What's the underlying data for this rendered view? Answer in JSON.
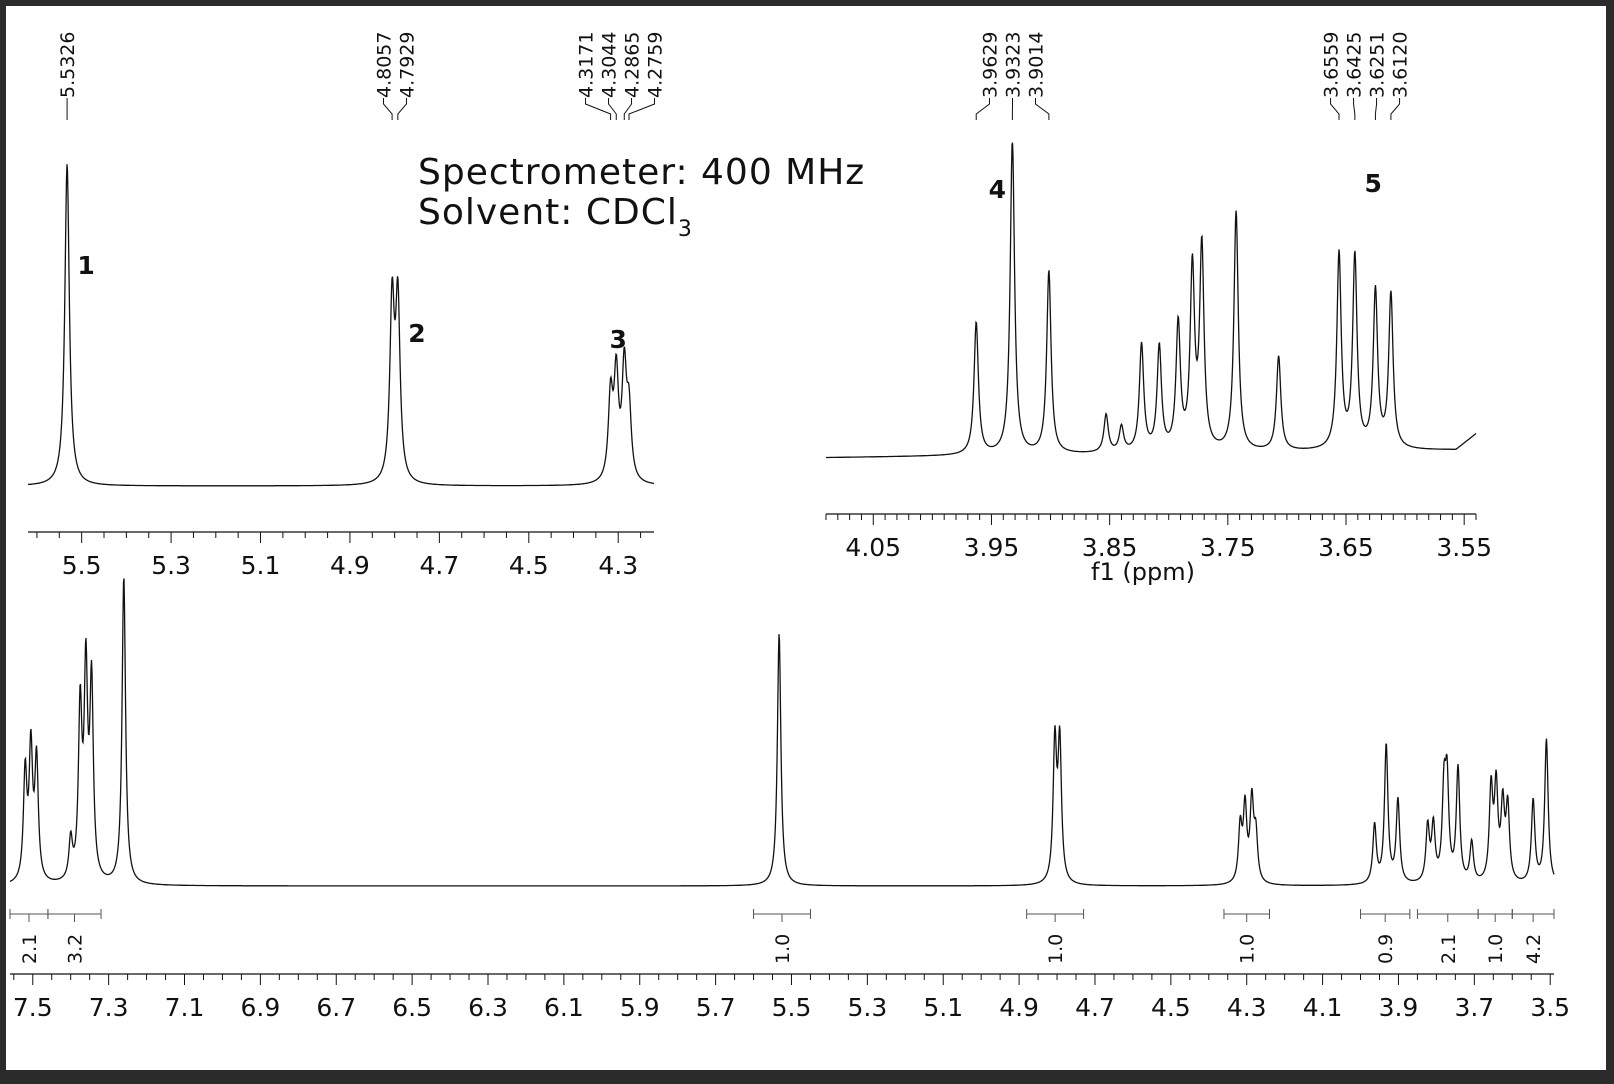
{
  "info": {
    "spectrometer": "Spectrometer: 400 MHz",
    "solvent_prefix": "Solvent: CDCl",
    "solvent_sub": "3"
  },
  "chart_data": [
    {
      "type": "line",
      "panel": "inset-left",
      "xlabel": "",
      "xlim": [
        5.62,
        4.22
      ],
      "ticks": [
        5.5,
        5.3,
        5.1,
        4.9,
        4.7,
        4.5,
        4.3
      ],
      "tick_labels": [
        "5.5",
        "5.3",
        "5.1",
        "4.9",
        "4.7",
        "4.5",
        "4.3"
      ],
      "peak_labels": [
        "5.5326",
        "4.8057",
        "4.7929",
        "4.3171",
        "4.3044",
        "4.2865",
        "4.2759"
      ],
      "peaks": [
        {
          "shift": 5.5326,
          "height": 1.0
        },
        {
          "shift": 4.8057,
          "height": 0.55
        },
        {
          "shift": 4.7929,
          "height": 0.55
        },
        {
          "shift": 4.3171,
          "height": 0.26
        },
        {
          "shift": 4.3044,
          "height": 0.32
        },
        {
          "shift": 4.2865,
          "height": 0.34
        },
        {
          "shift": 4.2759,
          "height": 0.21
        }
      ],
      "annotations": [
        {
          "text": "1",
          "shift": 5.49
        },
        {
          "text": "2",
          "shift": 4.75
        },
        {
          "text": "3",
          "shift": 4.3
        }
      ]
    },
    {
      "type": "line",
      "panel": "inset-right",
      "xlabel": "f1 (ppm)",
      "xlim": [
        4.09,
        3.54
      ],
      "ticks": [
        4.05,
        3.95,
        3.85,
        3.75,
        3.65,
        3.55
      ],
      "tick_labels": [
        "4.05",
        "3.95",
        "3.85",
        "3.75",
        "3.65",
        "3.55"
      ],
      "peak_labels": [
        "3.9629",
        "3.9323",
        "3.9014",
        "3.6559",
        "3.6425",
        "3.6251",
        "3.6120"
      ],
      "peaks": [
        {
          "shift": 3.9629,
          "height": 0.42
        },
        {
          "shift": 3.9323,
          "height": 1.0
        },
        {
          "shift": 3.9014,
          "height": 0.58
        },
        {
          "shift": 3.853,
          "height": 0.12
        },
        {
          "shift": 3.84,
          "height": 0.08
        },
        {
          "shift": 3.823,
          "height": 0.34
        },
        {
          "shift": 3.808,
          "height": 0.33
        },
        {
          "shift": 3.792,
          "height": 0.4
        },
        {
          "shift": 3.78,
          "height": 0.57
        },
        {
          "shift": 3.772,
          "height": 0.64
        },
        {
          "shift": 3.743,
          "height": 0.76
        },
        {
          "shift": 3.707,
          "height": 0.3
        },
        {
          "shift": 3.6559,
          "height": 0.62
        },
        {
          "shift": 3.6425,
          "height": 0.61
        },
        {
          "shift": 3.6251,
          "height": 0.5
        },
        {
          "shift": 3.612,
          "height": 0.49
        }
      ],
      "annotations": [
        {
          "text": "4",
          "shift": 3.945
        },
        {
          "text": "5",
          "shift": 3.627
        }
      ]
    },
    {
      "type": "line",
      "panel": "main",
      "xlabel": "",
      "xlim": [
        7.56,
        3.49
      ],
      "ticks": [
        7.5,
        7.3,
        7.1,
        6.9,
        6.7,
        6.5,
        6.3,
        6.1,
        5.9,
        5.7,
        5.5,
        5.3,
        5.1,
        4.9,
        4.7,
        4.5,
        4.3,
        4.1,
        3.9,
        3.7,
        3.5
      ],
      "tick_labels": [
        "7.5",
        "7.3",
        "7.1",
        "6.9",
        "6.7",
        "6.5",
        "6.3",
        "6.1",
        "5.9",
        "5.7",
        "5.5",
        "5.3",
        "5.1",
        "4.9",
        "4.7",
        "4.5",
        "4.3",
        "4.1",
        "3.9",
        "3.7",
        "3.5"
      ],
      "peaks": [
        {
          "shift": 7.52,
          "height": 0.35
        },
        {
          "shift": 7.505,
          "height": 0.42
        },
        {
          "shift": 7.49,
          "height": 0.39
        },
        {
          "shift": 7.4,
          "height": 0.13
        },
        {
          "shift": 7.375,
          "height": 0.55
        },
        {
          "shift": 7.36,
          "height": 0.66
        },
        {
          "shift": 7.345,
          "height": 0.63
        },
        {
          "shift": 7.26,
          "height": 1.0
        },
        {
          "shift": 5.5326,
          "height": 0.82
        },
        {
          "shift": 4.8057,
          "height": 0.45
        },
        {
          "shift": 4.7929,
          "height": 0.45
        },
        {
          "shift": 4.3171,
          "height": 0.18
        },
        {
          "shift": 4.3044,
          "height": 0.24
        },
        {
          "shift": 4.2865,
          "height": 0.26
        },
        {
          "shift": 4.2759,
          "height": 0.15
        },
        {
          "shift": 3.9629,
          "height": 0.19
        },
        {
          "shift": 3.9323,
          "height": 0.45
        },
        {
          "shift": 3.9014,
          "height": 0.27
        },
        {
          "shift": 3.823,
          "height": 0.18
        },
        {
          "shift": 3.808,
          "height": 0.18
        },
        {
          "shift": 3.78,
          "height": 0.28
        },
        {
          "shift": 3.772,
          "height": 0.31
        },
        {
          "shift": 3.743,
          "height": 0.37
        },
        {
          "shift": 3.707,
          "height": 0.13
        },
        {
          "shift": 3.6559,
          "height": 0.3
        },
        {
          "shift": 3.6425,
          "height": 0.3
        },
        {
          "shift": 3.6251,
          "height": 0.24
        },
        {
          "shift": 3.612,
          "height": 0.24
        },
        {
          "shift": 3.545,
          "height": 0.27
        },
        {
          "shift": 3.51,
          "height": 0.47
        }
      ],
      "integrals": [
        {
          "from": 7.56,
          "to": 7.46,
          "label": "2.1"
        },
        {
          "from": 7.46,
          "to": 7.32,
          "label": "3.2"
        },
        {
          "from": 5.6,
          "to": 5.45,
          "label": "1.0"
        },
        {
          "from": 4.88,
          "to": 4.73,
          "label": "1.0"
        },
        {
          "from": 4.36,
          "to": 4.24,
          "label": "1.0"
        },
        {
          "from": 4.0,
          "to": 3.87,
          "label": "0.9"
        },
        {
          "from": 3.85,
          "to": 3.69,
          "label": "2.1"
        },
        {
          "from": 3.69,
          "to": 3.6,
          "label": "1.0"
        },
        {
          "from": 3.6,
          "to": 3.49,
          "label": "4.2"
        }
      ]
    }
  ]
}
